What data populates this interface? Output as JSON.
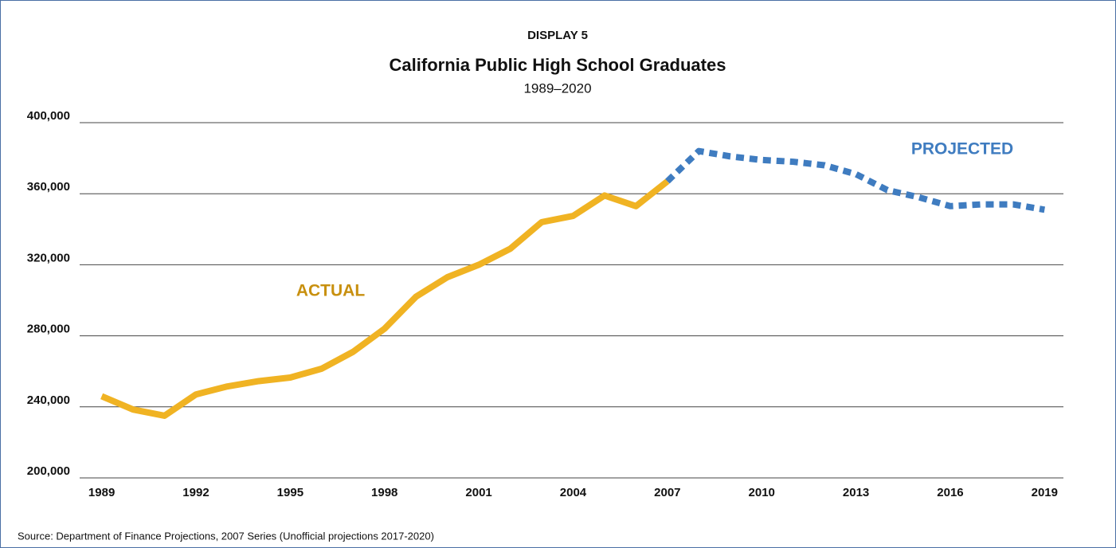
{
  "chart_data": {
    "type": "line",
    "kicker": "DISPLAY 5",
    "title": "California Public High School Graduates",
    "subtitle": "1989–2020",
    "x": [
      1989,
      1990,
      1991,
      1992,
      1993,
      1994,
      1995,
      1996,
      1997,
      1998,
      1999,
      2000,
      2001,
      2002,
      2003,
      2004,
      2005,
      2006,
      2007,
      2008,
      2009,
      2010,
      2011,
      2012,
      2013,
      2014,
      2015,
      2016,
      2017,
      2018,
      2019
    ],
    "series": [
      {
        "name": "ACTUAL",
        "color": "#f0b323",
        "dashed": false,
        "values": [
          246000,
          238500,
          235000,
          247000,
          251500,
          254500,
          256500,
          261500,
          271000,
          284000,
          302000,
          313000,
          320000,
          329000,
          344000,
          347500,
          359000,
          353000,
          367000,
          null,
          null,
          null,
          null,
          null,
          null,
          null,
          null,
          null,
          null,
          null,
          null
        ]
      },
      {
        "name": "PROJECTED",
        "color": "#3f7cc0",
        "dashed": true,
        "values": [
          null,
          null,
          null,
          null,
          null,
          null,
          null,
          null,
          null,
          null,
          null,
          null,
          null,
          null,
          null,
          null,
          null,
          null,
          367000,
          384000,
          381000,
          379000,
          378000,
          376000,
          371000,
          362000,
          358000,
          353000,
          354000,
          354000,
          351000
        ]
      }
    ],
    "xlim": [
      1988.3,
      2019.6
    ],
    "xticks": [
      1989,
      1992,
      1995,
      1998,
      2001,
      2004,
      2007,
      2010,
      2013,
      2016,
      2019
    ],
    "ylim": [
      200000,
      400000
    ],
    "yticks": [
      {
        "value": 200000,
        "label": "200,000"
      },
      {
        "value": 240000,
        "label": "240,000"
      },
      {
        "value": 280000,
        "label": "280,000"
      },
      {
        "value": 320000,
        "label": "320,000"
      },
      {
        "value": 360000,
        "label": "360,000"
      },
      {
        "value": 400000,
        "label": "400,000"
      }
    ],
    "grid": true,
    "source": "Source: Department of Finance Projections, 2007 Series (Unofficial projections 2017-2020)"
  }
}
